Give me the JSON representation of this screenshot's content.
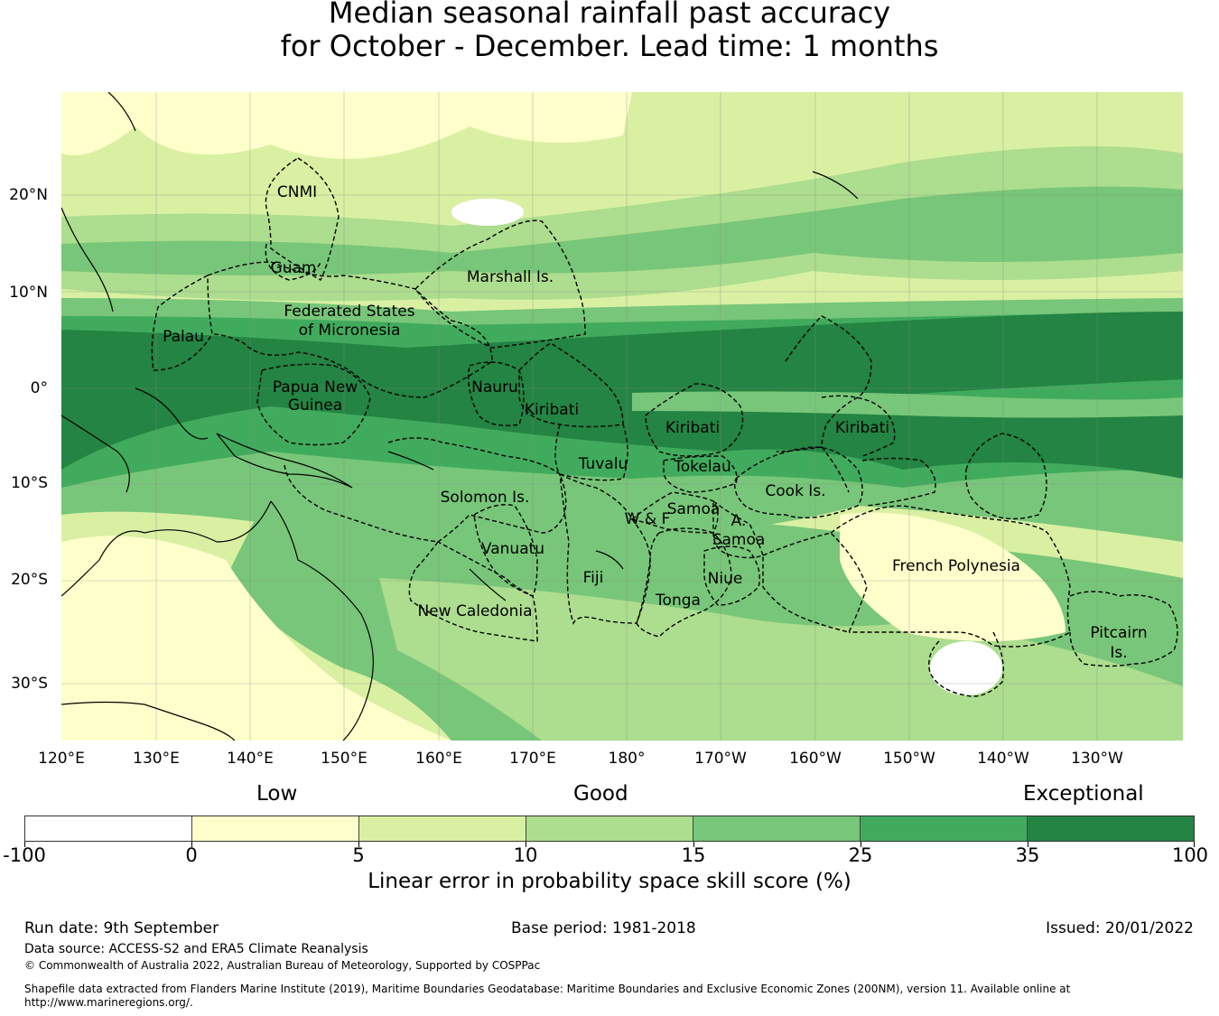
{
  "title": {
    "line1": "Median seasonal rainfall past accuracy",
    "line2": "for October - December. Lead time: 1 months"
  },
  "map": {
    "lat_labels": [
      "20°N",
      "10°N",
      "0°",
      "10°S",
      "20°S",
      "30°S"
    ],
    "lon_labels": [
      "120°E",
      "130°E",
      "140°E",
      "150°E",
      "160°E",
      "170°E",
      "180°",
      "170°W",
      "160°W",
      "150°W",
      "140°W",
      "130°W"
    ],
    "regions": [
      {
        "name": "CNMI"
      },
      {
        "name": "Guam"
      },
      {
        "name": "Marshall Is."
      },
      {
        "name": "Federated States"
      },
      {
        "name": "of Micronesia"
      },
      {
        "name": "Palau"
      },
      {
        "name": "Papua New"
      },
      {
        "name": "Guinea"
      },
      {
        "name": "Nauru"
      },
      {
        "name": "Kiribati"
      },
      {
        "name": "Kiribati"
      },
      {
        "name": "Kiribati"
      },
      {
        "name": "Tuvalu"
      },
      {
        "name": "Tokelau"
      },
      {
        "name": "Solomon Is."
      },
      {
        "name": "Samoa"
      },
      {
        "name": "W & F"
      },
      {
        "name": "A."
      },
      {
        "name": "Samoa"
      },
      {
        "name": "Cook Is."
      },
      {
        "name": "Vanuatu"
      },
      {
        "name": "Fiji"
      },
      {
        "name": "Niue"
      },
      {
        "name": "Tonga"
      },
      {
        "name": "New Caledonia"
      },
      {
        "name": "French Polynesia"
      },
      {
        "name": "Pitcairn"
      },
      {
        "name": "Is."
      }
    ],
    "colors": {
      "band_strong": "#238443",
      "band_mid": "#41ab5d",
      "band_light": "#78c679",
      "band_pale": "#addd8e",
      "band_faint": "#d9f0a3",
      "band_yellow": "#ffffcc",
      "land_line": "#000000"
    }
  },
  "legend": {
    "category_low": "Low",
    "category_good": "Good",
    "category_exceptional": "Exceptional",
    "colors": [
      "#ffffff",
      "#ffffcc",
      "#d9f0a3",
      "#addd8e",
      "#78c679",
      "#41ab5d",
      "#238443"
    ],
    "ticks": [
      "-100",
      "0",
      "5",
      "10",
      "15",
      "25",
      "35",
      "100"
    ],
    "title": "Linear error in probability space skill score (%)"
  },
  "footer": {
    "run_date": "Run date: 9th September",
    "base_period": "Base period: 1981-2018",
    "issued": "Issued: 20/01/2022",
    "data_source": "Data source: ACCESS-S2 and ERA5 Climate Reanalysis",
    "copyright": "© Commonwealth of Australia 2022, Australian Bureau of Meteorology, Supported by COSPPac",
    "shapefile_line1": "Shapefile data extracted from Flanders Marine Institute (2019), Maritime Boundaries Geodatabase: Maritime Boundaries and Exclusive Economic Zones (200NM), version 11. Available online at",
    "shapefile_line2": "http://www.marineregions.org/."
  }
}
